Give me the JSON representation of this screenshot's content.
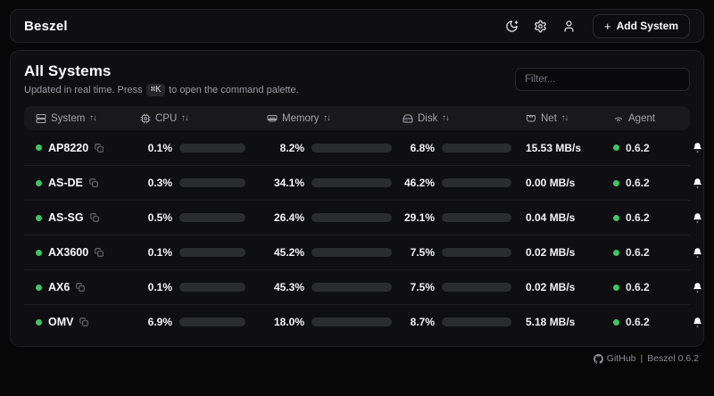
{
  "header": {
    "brand": "Beszel",
    "plus_icon": "+",
    "add_system_label": "Add System"
  },
  "main": {
    "title": "All Systems",
    "subtitle_prefix": "Updated in real time. Press",
    "kbd": "⌘K",
    "subtitle_suffix": "to open the command palette.",
    "filter_placeholder": "Filter..."
  },
  "table": {
    "sort_glyph": "↑↓",
    "actions_ellipsis": "•••",
    "columns": [
      {
        "label": "System",
        "icon": "server-icon",
        "sortable": true
      },
      {
        "label": "CPU",
        "icon": "cpu-icon",
        "sortable": true
      },
      {
        "label": "Memory",
        "icon": "memory-icon",
        "sortable": true
      },
      {
        "label": "Disk",
        "icon": "hard-drive-icon",
        "sortable": true
      },
      {
        "label": "Net",
        "icon": "ethernet-icon",
        "sortable": true
      },
      {
        "label": "Agent",
        "icon": "wifi-icon",
        "sortable": false
      }
    ],
    "rows": [
      {
        "name": "AP8220",
        "status": "up",
        "cpu": "0.1%",
        "cpu_pct": 0.1,
        "memory": "8.2%",
        "memory_pct": 8.2,
        "disk": "6.8%",
        "disk_pct": 6.8,
        "net": "15.53 MB/s",
        "agent": "0.6.2"
      },
      {
        "name": "AS-DE",
        "status": "up",
        "cpu": "0.3%",
        "cpu_pct": 0.3,
        "memory": "34.1%",
        "memory_pct": 34.1,
        "disk": "46.2%",
        "disk_pct": 46.2,
        "net": "0.00 MB/s",
        "agent": "0.6.2"
      },
      {
        "name": "AS-SG",
        "status": "up",
        "cpu": "0.5%",
        "cpu_pct": 0.5,
        "memory": "26.4%",
        "memory_pct": 26.4,
        "disk": "29.1%",
        "disk_pct": 29.1,
        "net": "0.04 MB/s",
        "agent": "0.6.2"
      },
      {
        "name": "AX3600",
        "status": "up",
        "cpu": "0.1%",
        "cpu_pct": 0.1,
        "memory": "45.2%",
        "memory_pct": 45.2,
        "disk": "7.5%",
        "disk_pct": 7.5,
        "net": "0.02 MB/s",
        "agent": "0.6.2"
      },
      {
        "name": "AX6",
        "status": "up",
        "cpu": "0.1%",
        "cpu_pct": 0.1,
        "memory": "45.3%",
        "memory_pct": 45.3,
        "disk": "7.5%",
        "disk_pct": 7.5,
        "net": "0.02 MB/s",
        "agent": "0.6.2"
      },
      {
        "name": "OMV",
        "status": "up",
        "cpu": "6.9%",
        "cpu_pct": 6.9,
        "memory": "18.0%",
        "memory_pct": 18.0,
        "disk": "8.7%",
        "disk_pct": 8.7,
        "net": "5.18 MB/s",
        "agent": "0.6.2"
      }
    ]
  },
  "footer": {
    "github_label": "GitHub",
    "separator": "|",
    "version_label": "Beszel 0.6.2"
  },
  "colors": {
    "accent_green": "#41c464",
    "bar_track": "#2a2c2e",
    "card_bg": "#0f0f11",
    "page_bg": "#070708"
  }
}
